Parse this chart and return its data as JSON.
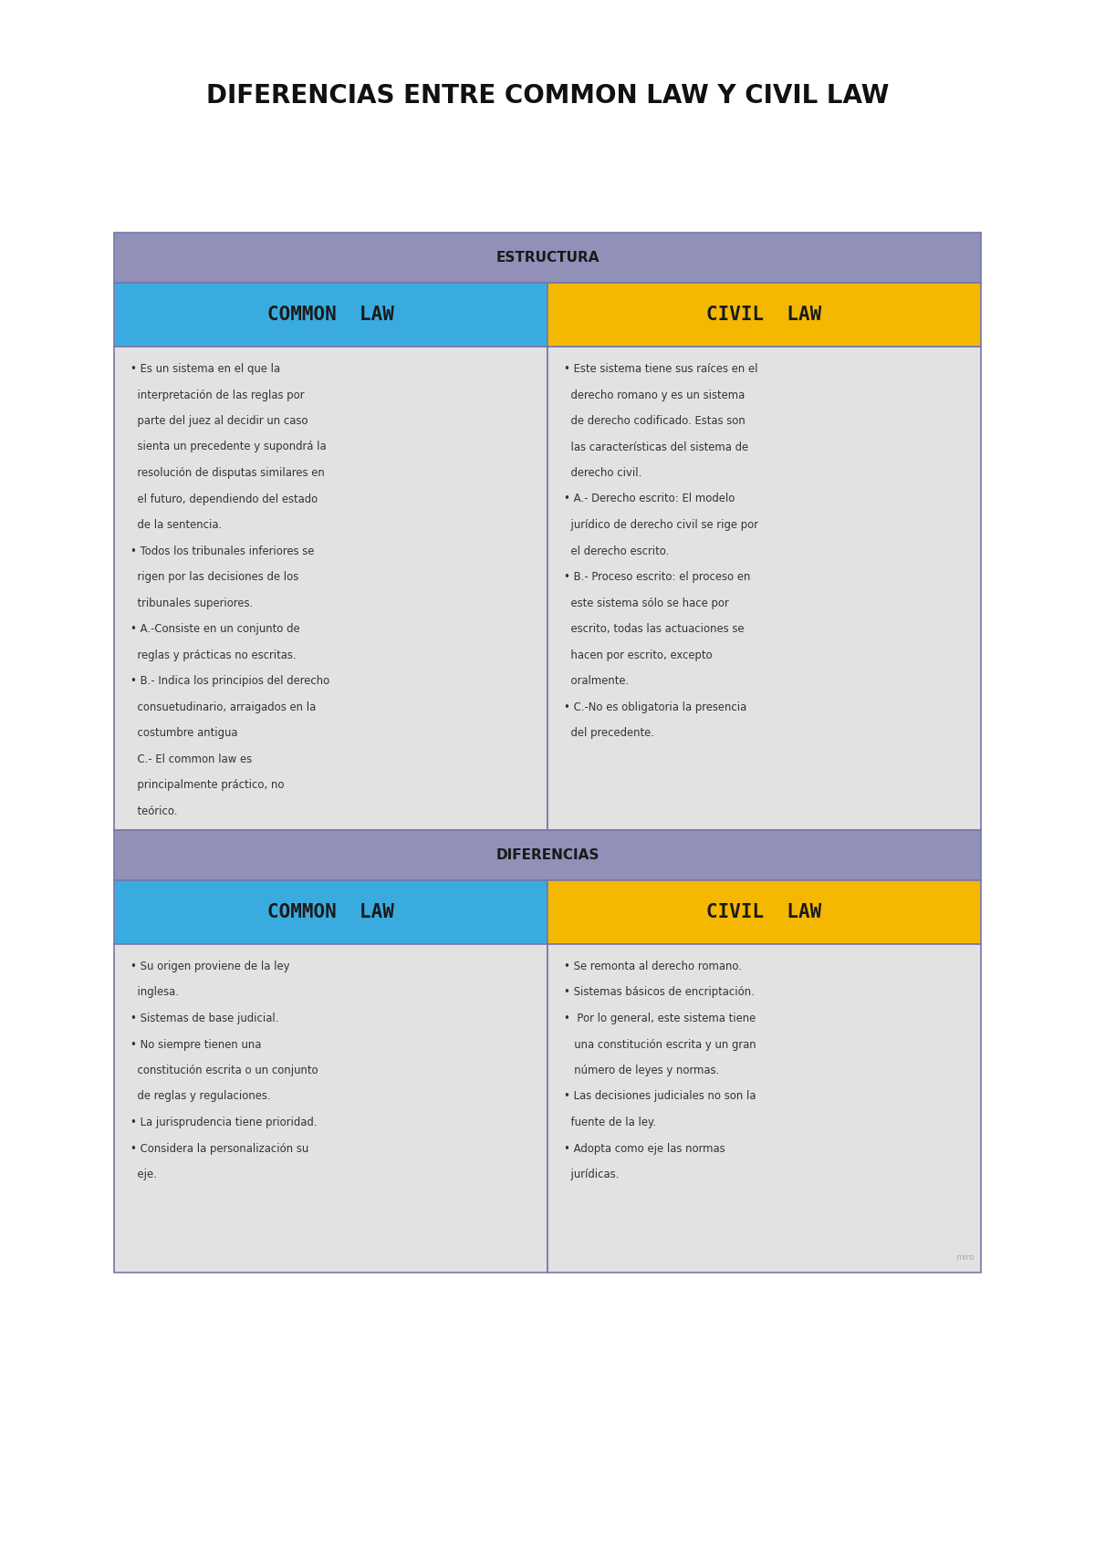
{
  "title": "DIFERENCIAS ENTRE COMMON LAW Y CIVIL LAW",
  "title_fontsize": 20,
  "bg_color": "#ffffff",
  "table_border_color": "#7777aa",
  "section_header_color": "#9090b8",
  "common_law_color": "#3aabdf",
  "civil_law_color": "#f5b800",
  "content_bg_color": "#e2e2e2",
  "section1_label": "ESTRUCTURA",
  "section2_label": "DIFERENCIAS",
  "common_law_label": "COMMON  LAW",
  "civil_law_label": "CIVIL  LAW",
  "estructura_common_lines": [
    "• Es un sistema en el que la",
    "  interpretación de las reglas por",
    "  parte del juez al decidir un caso",
    "  sienta un precedente y supondrá la",
    "  resolución de disputas similares en",
    "  el futuro, dependiendo del estado",
    "  de la sentencia.",
    "• Todos los tribunales inferiores se",
    "  rigen por las decisiones de los",
    "  tribunales superiores.",
    "• A.-Consiste en un conjunto de",
    "  reglas y prácticas no escritas.",
    "• B.- Indica los principios del derecho",
    "  consuetudinario, arraigados en la",
    "  costumbre antigua",
    "  C.- El common law es",
    "  principalmente práctico, no",
    "  teórico."
  ],
  "estructura_civil_lines": [
    "• Este sistema tiene sus raíces en el",
    "  derecho romano y es un sistema",
    "  de derecho codificado. Estas son",
    "  las características del sistema de",
    "  derecho civil.",
    "• A.- Derecho escrito: El modelo",
    "  jurídico de derecho civil se rige por",
    "  el derecho escrito.",
    "• B.- Proceso escrito: el proceso en",
    "  este sistema sólo se hace por",
    "  escrito, todas las actuaciones se",
    "  hacen por escrito, excepto",
    "  oralmente.",
    "• C.-No es obligatoria la presencia",
    "  del precedente."
  ],
  "diferencias_common_lines": [
    "• Su origen proviene de la ley",
    "  inglesa.",
    "• Sistemas de base judicial.",
    "• No siempre tienen una",
    "  constitución escrita o un conjunto",
    "  de reglas y regulaciones.",
    "• La jurisprudencia tiene prioridad.",
    "• Considera la personalización su",
    "  eje."
  ],
  "diferencias_civil_lines": [
    "• Se remonta al derecho romano.",
    "• Sistemas básicos de encriptación.",
    "•  Por lo general, este sistema tiene",
    "   una constitución escrita y un gran",
    "   número de leyes y normas.",
    "• Las decisiones judiciales no son la",
    "  fuente de la ley.",
    "• Adopta como eje las normas",
    "  jurídicas."
  ],
  "watermark": "miro"
}
